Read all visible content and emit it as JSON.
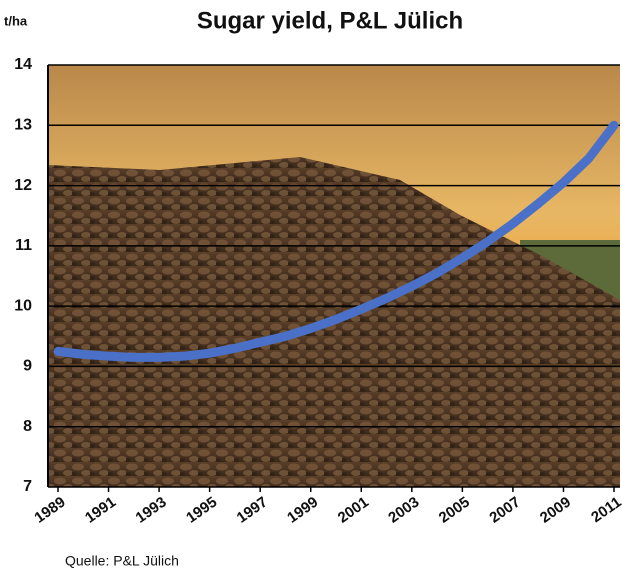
{
  "chart_data": {
    "type": "line",
    "title": "Sugar yield, P&L Jülich",
    "y_label": "t/ha",
    "source": "Quelle: P&L Jülich",
    "x": [
      1989,
      1990,
      1991,
      1992,
      1993,
      1994,
      1995,
      1996,
      1997,
      1998,
      1999,
      2000,
      2001,
      2002,
      2003,
      2004,
      2005,
      2006,
      2007,
      2008,
      2009,
      2010,
      2011
    ],
    "values": [
      9.25,
      9.2,
      9.17,
      9.15,
      9.15,
      9.17,
      9.22,
      9.3,
      9.4,
      9.5,
      9.63,
      9.78,
      9.95,
      10.13,
      10.33,
      10.55,
      10.8,
      11.07,
      11.37,
      11.7,
      12.05,
      12.45,
      13.0
    ],
    "color": "#4a70c8",
    "xlim": [
      1989,
      2011
    ],
    "xticks": [
      1989,
      1991,
      1993,
      1995,
      1997,
      1999,
      2001,
      2003,
      2005,
      2007,
      2009,
      2011
    ],
    "ylim": [
      7,
      14
    ],
    "yticks": [
      7,
      8,
      9,
      10,
      11,
      12,
      13,
      14
    ],
    "grid": true
  }
}
